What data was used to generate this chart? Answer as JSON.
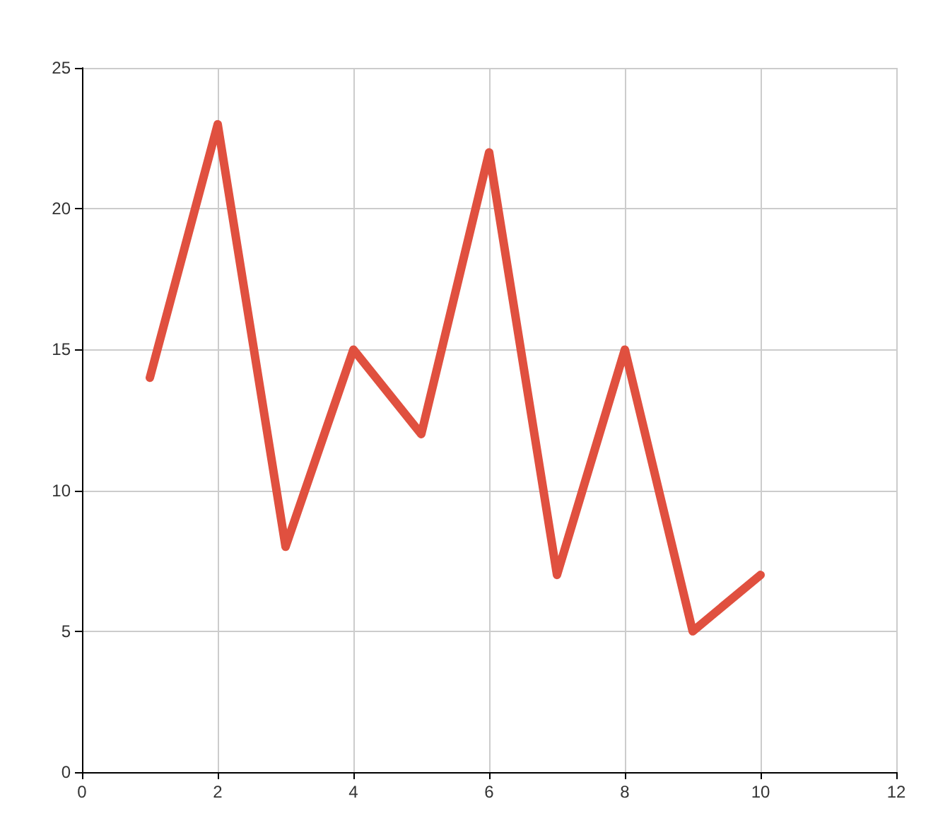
{
  "chart_data": {
    "type": "line",
    "x": [
      1,
      2,
      3,
      4,
      5,
      6,
      7,
      8,
      9,
      10
    ],
    "series": [
      {
        "color": "#e0503f",
        "values": [
          14,
          23,
          8,
          15,
          12,
          22,
          7,
          15,
          5,
          7
        ]
      }
    ],
    "xlim": [
      0,
      12
    ],
    "xticks": [
      0,
      2,
      4,
      6,
      8,
      10,
      12
    ],
    "ylim": [
      0,
      25
    ],
    "yticks": [
      0,
      5,
      10,
      15,
      20,
      25
    ],
    "grid": true,
    "marker": "none",
    "line_style": "solid"
  }
}
